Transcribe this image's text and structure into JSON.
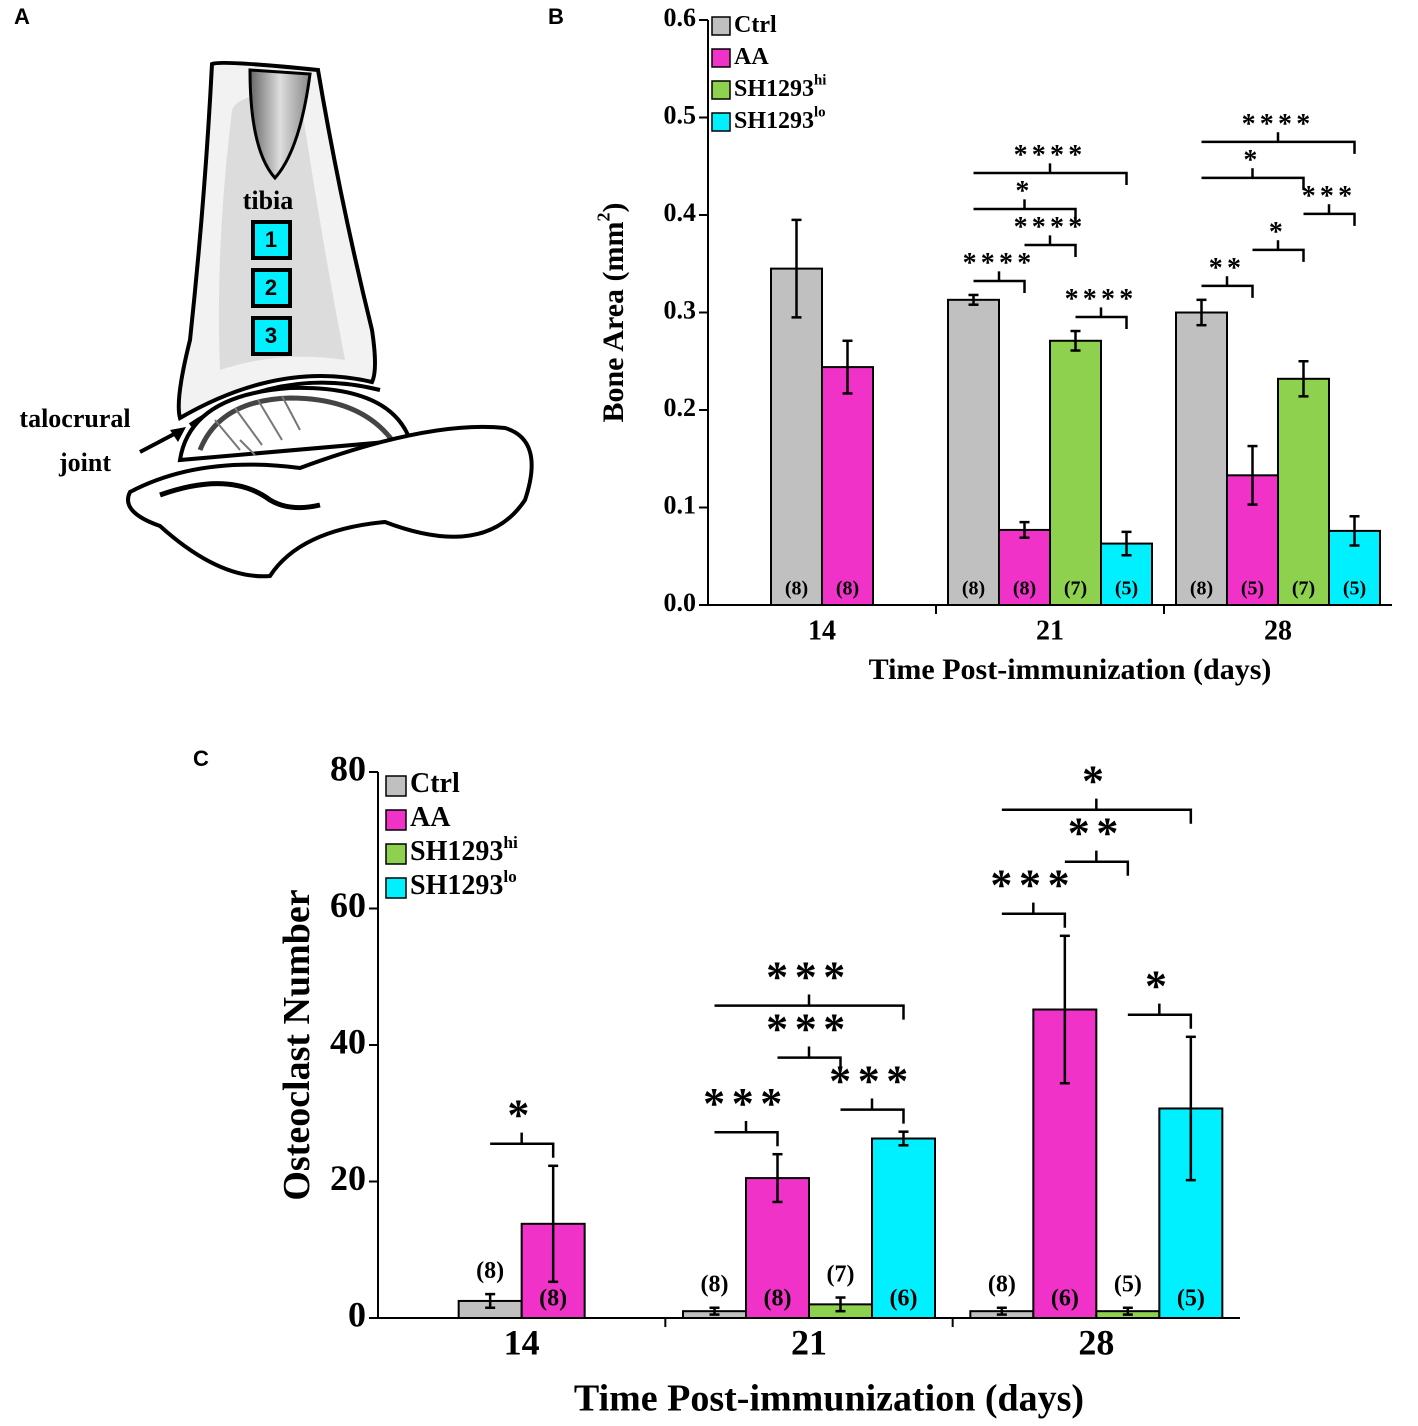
{
  "diagram": {
    "label": "A",
    "bone": "tibia",
    "regions": [
      "1",
      "2",
      "3"
    ],
    "joint": [
      "talocrural",
      "joint"
    ]
  },
  "chart_data": [
    {
      "panel_label": "B",
      "type": "bar",
      "categories": [
        "14",
        "21",
        "28"
      ],
      "series": [
        {
          "name": "Ctrl",
          "color": "#c0c0c0",
          "values": [
            0.345,
            0.313,
            0.3
          ],
          "errors": [
            0.05,
            0.005,
            0.013
          ],
          "n_labels": [
            "(8)",
            "(8)",
            "(8)"
          ]
        },
        {
          "name": "AA",
          "color": "#f032c8",
          "values": [
            0.244,
            0.077,
            0.133
          ],
          "errors": [
            0.027,
            0.008,
            0.03
          ],
          "n_labels": [
            "(8)",
            "(8)",
            "(5)"
          ]
        },
        {
          "name": "SH1293",
          "name_sup": "hi",
          "color": "#8dd14f",
          "values": [
            null,
            0.271,
            0.232
          ],
          "errors": [
            null,
            0.01,
            0.018
          ],
          "n_labels": [
            null,
            "(7)",
            "(7)"
          ]
        },
        {
          "name": "SH1293",
          "name_sup": "lo",
          "color": "#00f0ff",
          "values": [
            null,
            0.063,
            0.076
          ],
          "errors": [
            null,
            0.012,
            0.015
          ],
          "n_labels": [
            null,
            "(5)",
            "(5)"
          ]
        }
      ],
      "ylim": [
        0,
        0.6
      ],
      "yticks": [
        {
          "value": 0,
          "label": "0.0"
        },
        {
          "value": 0.1,
          "label": "0.1"
        },
        {
          "value": 0.2,
          "label": "0.2"
        },
        {
          "value": 0.3,
          "label": "0.3"
        },
        {
          "value": 0.4,
          "label": "0.4"
        },
        {
          "value": 0.5,
          "label": "0.5"
        },
        {
          "value": 0.6,
          "label": "0.6"
        }
      ],
      "ylabel": {
        "text": "Bone Area (mm",
        "sup": "2",
        "end": ")"
      },
      "xlabel": "Time Post-immunization (days)",
      "legend": "upper left",
      "significance": [
        {
          "category": 1,
          "from": 0,
          "to": 1,
          "label": "****"
        },
        {
          "category": 1,
          "from": 2,
          "to": 3,
          "label": "****"
        },
        {
          "category": 1,
          "from": 1,
          "to": 2,
          "label": "****"
        },
        {
          "category": 1,
          "from": 0,
          "to": 2,
          "label": "*"
        },
        {
          "category": 1,
          "from": 0,
          "to": 3,
          "label": "****"
        },
        {
          "category": 2,
          "from": 0,
          "to": 1,
          "label": "**"
        },
        {
          "category": 2,
          "from": 1,
          "to": 2,
          "label": "*"
        },
        {
          "category": 2,
          "from": 2,
          "to": 3,
          "label": "***"
        },
        {
          "category": 2,
          "from": 0,
          "to": 2,
          "label": "*"
        },
        {
          "category": 2,
          "from": 0,
          "to": 3,
          "label": "****"
        }
      ]
    },
    {
      "panel_label": "C",
      "type": "bar",
      "categories": [
        "14",
        "21",
        "28"
      ],
      "series": [
        {
          "name": "Ctrl",
          "color": "#c0c0c0",
          "values": [
            2.5,
            1,
            1
          ],
          "errors": [
            1,
            0.5,
            0.5
          ],
          "n_labels": [
            "(8)",
            "(8)",
            "(8)"
          ]
        },
        {
          "name": "AA",
          "color": "#f032c8",
          "values": [
            13.8,
            20.5,
            45.2
          ],
          "errors": [
            8.5,
            3.5,
            10.8
          ],
          "n_labels": [
            "(8)",
            "(8)",
            "(6)"
          ]
        },
        {
          "name": "SH1293",
          "name_sup": "hi",
          "color": "#8dd14f",
          "values": [
            null,
            2,
            1
          ],
          "errors": [
            null,
            1,
            0.5
          ],
          "n_labels": [
            null,
            "(7)",
            "(5)"
          ]
        },
        {
          "name": "SH1293",
          "name_sup": "lo",
          "color": "#00f0ff",
          "values": [
            null,
            26.3,
            30.7
          ],
          "errors": [
            null,
            1,
            10.5
          ],
          "n_labels": [
            null,
            "(6)",
            "(5)"
          ]
        }
      ],
      "ylim": [
        0,
        80
      ],
      "yticks": [
        0,
        20,
        40,
        60,
        80
      ],
      "ylabel": {
        "text": "Osteoclast Number"
      },
      "xlabel": "Time Post-immunization (days)",
      "legend": "upper left",
      "significance": [
        {
          "category": 0,
          "from": 0,
          "to": 1,
          "label": "*"
        },
        {
          "category": 1,
          "from": 0,
          "to": 1,
          "label": "***"
        },
        {
          "category": 1,
          "from": 2,
          "to": 3,
          "label": "***"
        },
        {
          "category": 1,
          "from": 1,
          "to": 2,
          "label": "***"
        },
        {
          "category": 1,
          "from": 0,
          "to": 3,
          "label": "***"
        },
        {
          "category": 2,
          "from": 0,
          "to": 1,
          "label": "***"
        },
        {
          "category": 2,
          "from": 2,
          "to": 3,
          "label": "*"
        },
        {
          "category": 2,
          "from": 1,
          "to": 2,
          "label": "**"
        },
        {
          "category": 2,
          "from": 0,
          "to": 3,
          "label": "*"
        }
      ]
    }
  ]
}
